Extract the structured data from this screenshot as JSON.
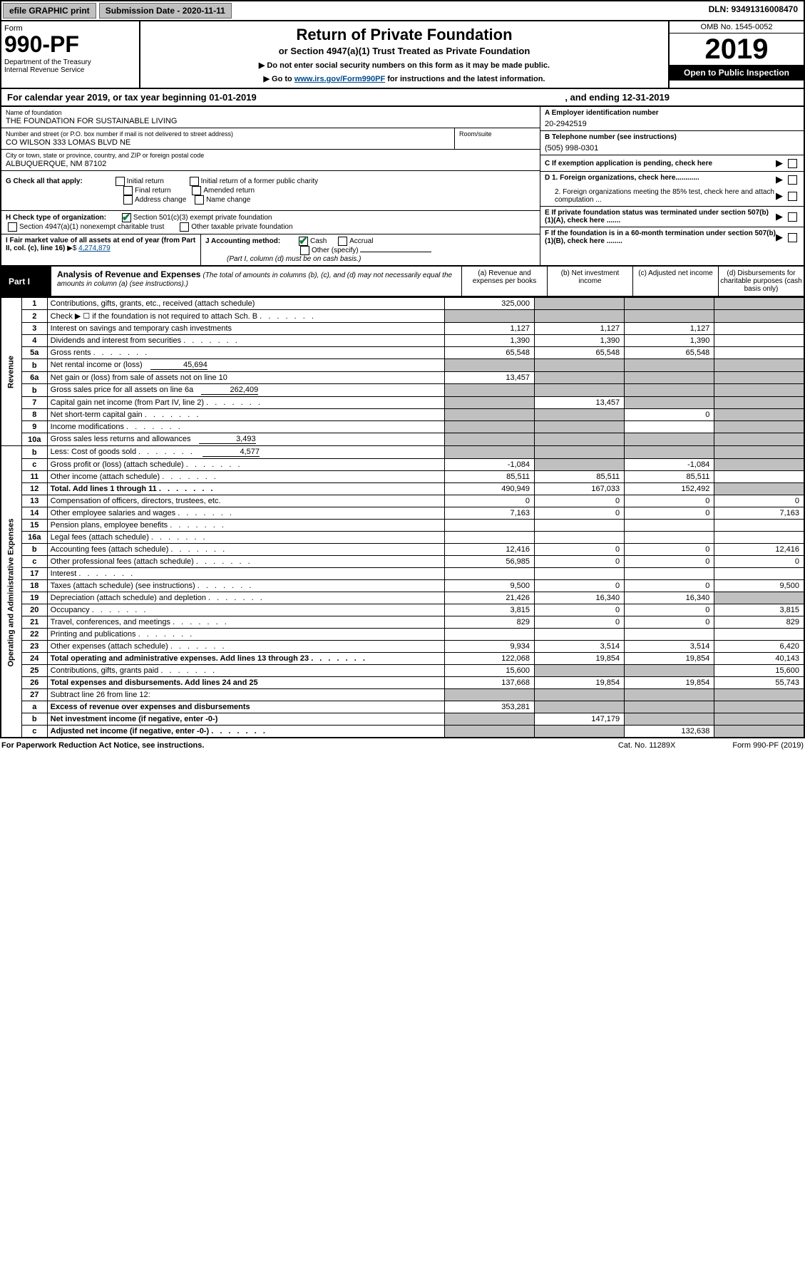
{
  "top": {
    "efile": "efile GRAPHIC print",
    "sub": "Submission Date - 2020-11-11",
    "dln": "DLN: 93491316008470"
  },
  "header": {
    "form_label": "Form",
    "form_num": "990-PF",
    "dept": "Department of the Treasury\nInternal Revenue Service",
    "title": "Return of Private Foundation",
    "sub": "or Section 4947(a)(1) Trust Treated as Private Foundation",
    "note1": "▶ Do not enter social security numbers on this form as it may be made public.",
    "note2": "▶ Go to ",
    "note2_link": "www.irs.gov/Form990PF",
    "note2_tail": " for instructions and the latest information.",
    "omb": "OMB No. 1545-0052",
    "year": "2019",
    "inspect": "Open to Public Inspection"
  },
  "cal": {
    "pre": "For calendar year 2019, or tax year beginning 01-01-2019",
    "end": ", and ending 12-31-2019"
  },
  "info": {
    "name_lbl": "Name of foundation",
    "name": "THE FOUNDATION FOR SUSTAINABLE LIVING",
    "addr_lbl": "Number and street (or P.O. box number if mail is not delivered to street address)",
    "addr": "CO WILSON 333 LOMAS BLVD NE",
    "room_lbl": "Room/suite",
    "city_lbl": "City or town, state or province, country, and ZIP or foreign postal code",
    "city": "ALBUQUERQUE, NM  87102",
    "a_lbl": "A Employer identification number",
    "a_val": "20-2942519",
    "b_lbl": "B Telephone number (see instructions)",
    "b_val": "(505) 998-0301",
    "c_lbl": "C If exemption application is pending, check here",
    "d1": "D 1. Foreign organizations, check here............",
    "d2": "2. Foreign organizations meeting the 85% test, check here and attach computation ...",
    "e_lbl": "E  If private foundation status was terminated under section 507(b)(1)(A), check here .......",
    "f_lbl": "F  If the foundation is in a 60-month termination under section 507(b)(1)(B), check here ........",
    "g_lbl": "G Check all that apply:",
    "g_opts": [
      "Initial return",
      "Initial return of a former public charity",
      "Final return",
      "Amended return",
      "Address change",
      "Name change"
    ],
    "h_lbl": "H Check type of organization:",
    "h1": "Section 501(c)(3) exempt private foundation",
    "h2": "Section 4947(a)(1) nonexempt charitable trust",
    "h3": "Other taxable private foundation",
    "i_lbl": "I Fair market value of all assets at end of year (from Part II, col. (c), line 16)",
    "i_val": "4,274,879",
    "j_lbl": "J Accounting method:",
    "j_cash": "Cash",
    "j_accr": "Accrual",
    "j_oth": "Other (specify)",
    "j_note": "(Part I, column (d) must be on cash basis.)"
  },
  "part": {
    "lbl": "Part I",
    "title": "Analysis of Revenue and Expenses",
    "italic": "(The total of amounts in columns (b), (c), and (d) may not necessarily equal the amounts in column (a) (see instructions).)",
    "ca": "(a)  Revenue and expenses per books",
    "cb": "(b)  Net investment income",
    "cc": "(c)  Adjusted net income",
    "cd": "(d)  Disbursements for charitable purposes (cash basis only)"
  },
  "sections": {
    "rev": "Revenue",
    "oae": "Operating and Administrative Expenses"
  },
  "rows": [
    {
      "n": "1",
      "d": "Contributions, gifts, grants, etc., received (attach schedule)",
      "a": "325,000",
      "grey_bcd": true
    },
    {
      "n": "2",
      "d": "Check ▶ ☐ if the foundation is not required to attach Sch. B",
      "dots": true,
      "grey_all": true
    },
    {
      "n": "3",
      "d": "Interest on savings and temporary cash investments",
      "a": "1,127",
      "b": "1,127",
      "c": "1,127"
    },
    {
      "n": "4",
      "d": "Dividends and interest from securities",
      "dots": true,
      "a": "1,390",
      "b": "1,390",
      "c": "1,390"
    },
    {
      "n": "5a",
      "d": "Gross rents",
      "dots": true,
      "a": "65,548",
      "b": "65,548",
      "c": "65,548"
    },
    {
      "n": "b",
      "d": "Net rental income or (loss)",
      "sub": "45,694",
      "grey_all": true
    },
    {
      "n": "6a",
      "d": "Net gain or (loss) from sale of assets not on line 10",
      "a": "13,457",
      "grey_bcd": true
    },
    {
      "n": "b",
      "d": "Gross sales price for all assets on line 6a",
      "sub": "262,409",
      "grey_all": true
    },
    {
      "n": "7",
      "d": "Capital gain net income (from Part IV, line 2)",
      "dots": true,
      "grey_a": true,
      "b": "13,457",
      "grey_cd": true
    },
    {
      "n": "8",
      "d": "Net short-term capital gain",
      "dots": true,
      "grey_ab": true,
      "c": "0",
      "grey_d": true
    },
    {
      "n": "9",
      "d": "Income modifications",
      "dots": true,
      "grey_ab": true,
      "grey_d": true
    },
    {
      "n": "10a",
      "d": "Gross sales less returns and allowances",
      "sub": "3,493",
      "grey_all": true
    },
    {
      "n": "b",
      "d": "Less: Cost of goods sold",
      "dots": true,
      "sub": "4,577",
      "grey_all": true
    },
    {
      "n": "c",
      "d": "Gross profit or (loss) (attach schedule)",
      "dots": true,
      "a": "-1,084",
      "grey_b": true,
      "c": "-1,084",
      "grey_d": true
    },
    {
      "n": "11",
      "d": "Other income (attach schedule)",
      "dots": true,
      "a": "85,511",
      "b": "85,511",
      "c": "85,511"
    },
    {
      "n": "12",
      "d": "Total. Add lines 1 through 11",
      "dots": true,
      "bold": true,
      "a": "490,949",
      "b": "167,033",
      "c": "152,492",
      "grey_d": true
    },
    {
      "n": "13",
      "d": "Compensation of officers, directors, trustees, etc.",
      "a": "0",
      "b": "0",
      "c": "0",
      "dd": "0"
    },
    {
      "n": "14",
      "d": "Other employee salaries and wages",
      "dots": true,
      "a": "7,163",
      "b": "0",
      "c": "0",
      "dd": "7,163"
    },
    {
      "n": "15",
      "d": "Pension plans, employee benefits",
      "dots": true
    },
    {
      "n": "16a",
      "d": "Legal fees (attach schedule)",
      "dots": true
    },
    {
      "n": "b",
      "d": "Accounting fees (attach schedule)",
      "dots": true,
      "a": "12,416",
      "b": "0",
      "c": "0",
      "dd": "12,416"
    },
    {
      "n": "c",
      "d": "Other professional fees (attach schedule)",
      "dots": true,
      "a": "56,985",
      "b": "0",
      "c": "0",
      "dd": "0"
    },
    {
      "n": "17",
      "d": "Interest",
      "dots": true
    },
    {
      "n": "18",
      "d": "Taxes (attach schedule) (see instructions)",
      "dots": true,
      "a": "9,500",
      "b": "0",
      "c": "0",
      "dd": "9,500"
    },
    {
      "n": "19",
      "d": "Depreciation (attach schedule) and depletion",
      "dots": true,
      "a": "21,426",
      "b": "16,340",
      "c": "16,340",
      "grey_d": true
    },
    {
      "n": "20",
      "d": "Occupancy",
      "dots": true,
      "a": "3,815",
      "b": "0",
      "c": "0",
      "dd": "3,815"
    },
    {
      "n": "21",
      "d": "Travel, conferences, and meetings",
      "dots": true,
      "a": "829",
      "b": "0",
      "c": "0",
      "dd": "829"
    },
    {
      "n": "22",
      "d": "Printing and publications",
      "dots": true
    },
    {
      "n": "23",
      "d": "Other expenses (attach schedule)",
      "dots": true,
      "a": "9,934",
      "b": "3,514",
      "c": "3,514",
      "dd": "6,420"
    },
    {
      "n": "24",
      "d": "Total operating and administrative expenses. Add lines 13 through 23",
      "dots": true,
      "bold": true,
      "a": "122,068",
      "b": "19,854",
      "c": "19,854",
      "dd": "40,143"
    },
    {
      "n": "25",
      "d": "Contributions, gifts, grants paid",
      "dots": true,
      "a": "15,600",
      "grey_bc": true,
      "dd": "15,600"
    },
    {
      "n": "26",
      "d": "Total expenses and disbursements. Add lines 24 and 25",
      "bold": true,
      "a": "137,668",
      "b": "19,854",
      "c": "19,854",
      "dd": "55,743"
    },
    {
      "n": "27",
      "d": "Subtract line 26 from line 12:",
      "grey_all": true
    },
    {
      "n": "a",
      "d": "Excess of revenue over expenses and disbursements",
      "bold": true,
      "a": "353,281",
      "grey_bcd": true
    },
    {
      "n": "b",
      "d": "Net investment income (if negative, enter -0-)",
      "bold": true,
      "grey_a": true,
      "b": "147,179",
      "grey_cd": true
    },
    {
      "n": "c",
      "d": "Adjusted net income (if negative, enter -0-)",
      "bold": true,
      "dots": true,
      "grey_ab": true,
      "c": "132,638",
      "grey_d": true
    }
  ],
  "footer": {
    "l": "For Paperwork Reduction Act Notice, see instructions.",
    "m": "Cat. No. 11289X",
    "r": "Form 990-PF (2019)"
  }
}
